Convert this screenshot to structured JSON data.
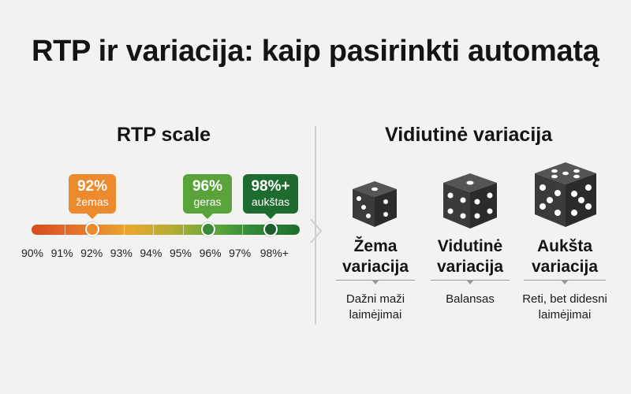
{
  "title": "RTP ir variacija: kaip pasirinkti automatą",
  "rtp": {
    "heading": "RTP scale",
    "ticks": [
      "90%",
      "91%",
      "92%",
      "93%",
      "94%",
      "95%",
      "96%",
      "97%",
      "98%+"
    ],
    "markers": [
      {
        "value": "92%",
        "label": "žemas",
        "color": "#ee8a2e",
        "dot_color": "#ee8a2e"
      },
      {
        "value": "96%",
        "label": "geras",
        "color": "#5aa33a",
        "dot_color": "#3b8b36"
      },
      {
        "value": "98%+",
        "label": "aukštas",
        "color": "#1e6b30",
        "dot_color": "#1b5e2b"
      }
    ]
  },
  "variation": {
    "heading": "Vidiutinė variacija",
    "items": [
      {
        "name_line1": "Žema",
        "name_line2": "variacija",
        "desc_line1": "Dažni maži",
        "desc_line2": "laimėjimai",
        "die_icon": "die-three-icon"
      },
      {
        "name_line1": "Vidutinė",
        "name_line2": "variacija",
        "desc_line1": "Balansas",
        "desc_line2": "",
        "die_icon": "die-four-icon"
      },
      {
        "name_line1": "Aukšta",
        "name_line2": "variacija",
        "desc_line1": "Reti, bet didesni",
        "desc_line2": "laimėjimai",
        "die_icon": "die-five-icon"
      }
    ]
  },
  "colors": {
    "background": "#f2f2f1",
    "die": "#3b3b3b"
  }
}
